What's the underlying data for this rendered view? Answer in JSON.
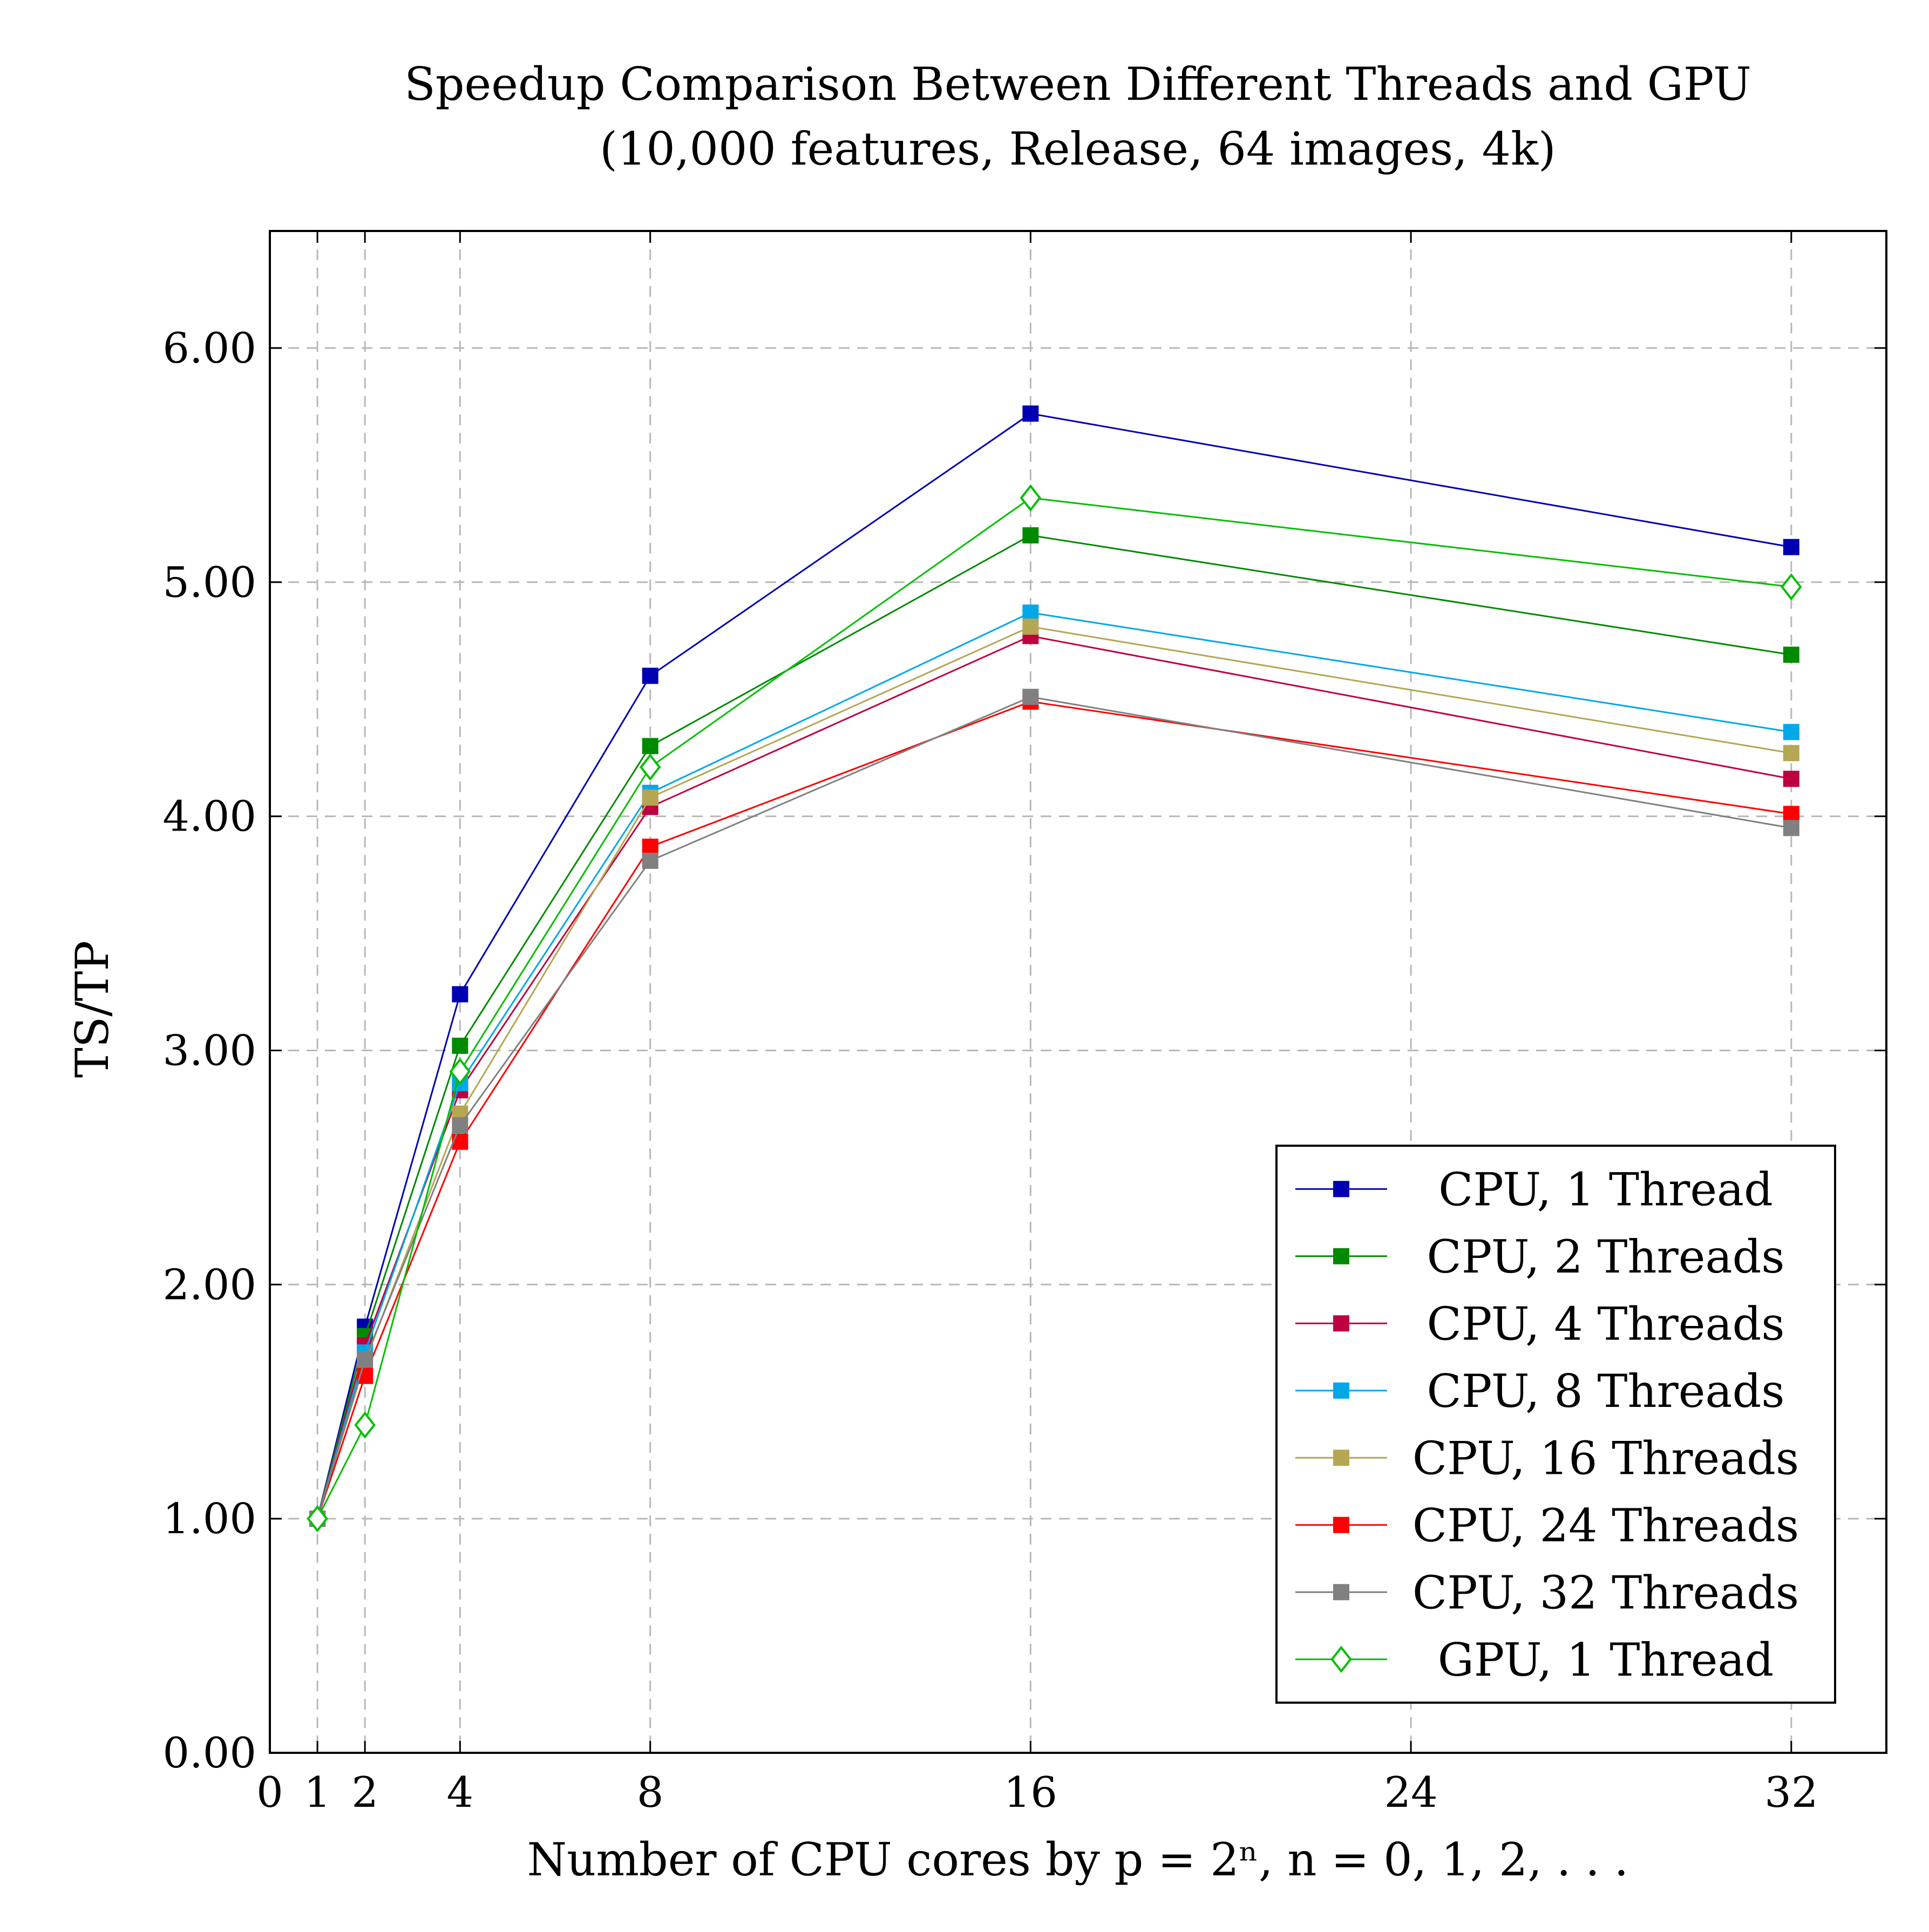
{
  "chart_data": {
    "type": "line",
    "title": "Speedup Comparison Between Different Threads and GPU",
    "subtitle": "(10,000 features, Release, 64 images, 4k)",
    "xlabel": "Number of CPU cores by p = 2ⁿ, n = 0, 1, 2, . . .",
    "ylabel": "TS/TP",
    "xlim": [
      0,
      34
    ],
    "ylim": [
      0,
      6.5
    ],
    "x_ticks": [
      0,
      1,
      2,
      4,
      8,
      16,
      24,
      32
    ],
    "x_tick_labels": [
      "0",
      "1",
      "2",
      "4",
      "8",
      "16",
      "24",
      "32"
    ],
    "y_ticks": [
      0,
      1,
      2,
      3,
      4,
      5,
      6
    ],
    "y_tick_labels": [
      "0.00",
      "1.00",
      "2.00",
      "3.00",
      "4.00",
      "5.00",
      "6.00"
    ],
    "grid": true,
    "legend_position": "bottom-right",
    "x": [
      1,
      2,
      4,
      8,
      16,
      32
    ],
    "series": [
      {
        "name": "CPU, 1 Thread",
        "color": "#0000b3",
        "marker": "square",
        "values": [
          1.0,
          1.82,
          3.24,
          4.6,
          5.72,
          5.15
        ]
      },
      {
        "name": "CPU, 2 Threads",
        "color": "#008a00",
        "marker": "square",
        "values": [
          1.0,
          1.78,
          3.02,
          4.3,
          5.2,
          4.69
        ]
      },
      {
        "name": "CPU, 4 Threads",
        "color": "#bf0040",
        "marker": "square",
        "values": [
          1.0,
          1.74,
          2.83,
          4.04,
          4.77,
          4.16
        ]
      },
      {
        "name": "CPU, 8 Threads",
        "color": "#00a8e8",
        "marker": "square",
        "values": [
          1.0,
          1.71,
          2.86,
          4.1,
          4.87,
          4.36
        ]
      },
      {
        "name": "CPU, 16 Threads",
        "color": "#b5a653",
        "marker": "square",
        "values": [
          1.0,
          1.67,
          2.73,
          4.08,
          4.81,
          4.27
        ]
      },
      {
        "name": "CPU, 24 Threads",
        "color": "#ff0000",
        "marker": "square",
        "values": [
          1.0,
          1.61,
          2.61,
          3.87,
          4.49,
          4.01
        ]
      },
      {
        "name": "CPU, 32 Threads",
        "color": "#808080",
        "marker": "square",
        "values": [
          1.0,
          1.68,
          2.68,
          3.81,
          4.51,
          3.95
        ]
      },
      {
        "name": "GPU, 1 Thread",
        "color": "#00bf00",
        "marker": "diamond",
        "values": [
          1.0,
          1.4,
          2.91,
          4.21,
          5.36,
          4.98
        ]
      }
    ]
  }
}
